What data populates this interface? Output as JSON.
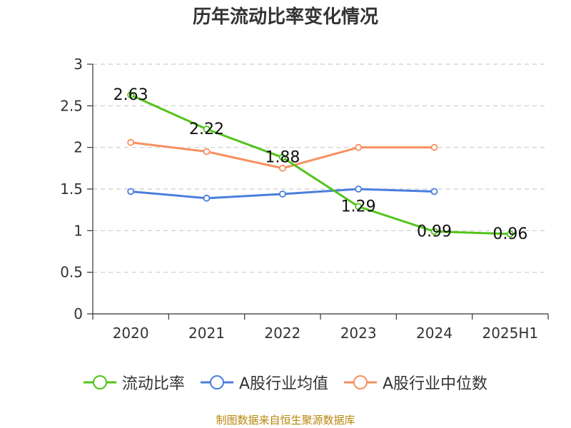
{
  "title": "历年流动比率变化情况",
  "source_note": "制图数据来自恒生聚源数据库",
  "chart_data": {
    "type": "line",
    "title": "历年流动比率变化情况",
    "categories": [
      "2020",
      "2021",
      "2022",
      "2023",
      "2024",
      "2025H1"
    ],
    "ylim": [
      0,
      3
    ],
    "yticks": [
      "0",
      "0.5",
      "1",
      "1.5",
      "2",
      "2.5",
      "3"
    ],
    "grid": true,
    "legend_position": "bottom",
    "series": [
      {
        "name": "流动比率",
        "color": "#52c41a",
        "values": [
          2.63,
          2.22,
          1.88,
          1.29,
          0.99,
          0.96
        ],
        "labels": [
          "2.63",
          "2.22",
          "1.88",
          "1.29",
          "0.99",
          "0.96"
        ]
      },
      {
        "name": "A股行业均值",
        "color": "#4a7fdc",
        "values": [
          1.47,
          1.39,
          1.44,
          1.5,
          1.47,
          null
        ]
      },
      {
        "name": "A股行业中位数",
        "color": "#f79060",
        "values": [
          2.06,
          1.95,
          1.75,
          2.0,
          2.0,
          null
        ]
      }
    ]
  }
}
